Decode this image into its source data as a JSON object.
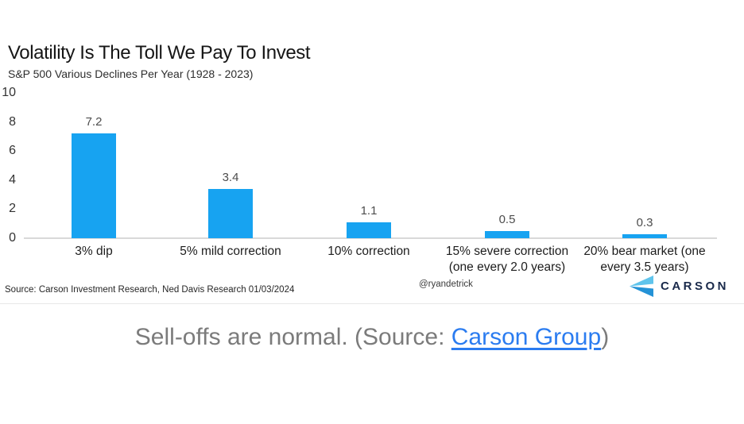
{
  "chart": {
    "title": "Volatility Is The Toll We Pay To Invest",
    "subtitle": "S&P 500 Various Declines Per Year (1928 - 2023)",
    "source_note": "Source: Carson Investment Research, Ned Davis Research 01/03/2024",
    "handle": "@ryandetrick",
    "logo_text": "CARSON"
  },
  "chart_data": {
    "type": "bar",
    "title": "Volatility Is The Toll We Pay To Invest",
    "subtitle": "S&P 500 Various Declines Per Year (1928 - 2023)",
    "categories": [
      "3% dip",
      "5% mild correction",
      "10% correction",
      "15% severe correction (one every 2.0 years)",
      "20% bear market (one every 3.5 years)"
    ],
    "category_lines": [
      [
        "3% dip"
      ],
      [
        "5% mild correction"
      ],
      [
        "10% correction"
      ],
      [
        "15% severe correction",
        "(one every 2.0 years)"
      ],
      [
        "20% bear market (one",
        "every 3.5  years)"
      ]
    ],
    "values": [
      7.2,
      3.4,
      1.1,
      0.5,
      0.3
    ],
    "value_labels": [
      "7.2",
      "3.4",
      "1.1",
      "0.5",
      "0.3"
    ],
    "ylim": [
      0,
      10
    ],
    "yticks": [
      0,
      2,
      4,
      6,
      8,
      10
    ],
    "grid": false,
    "legend": null,
    "bar_color": "#17a3f1"
  },
  "colors": {
    "bar_blue": "#17a3f1",
    "link_blue": "#2b7cf0",
    "logo_navy": "#19294a",
    "chevron_light": "#5fc4ec",
    "chevron_dark": "#2492d6",
    "caption_gray": "#7b7b7b"
  },
  "caption": {
    "prefix": "Sell-offs are normal. (Source: ",
    "link_text": "Carson Group",
    "suffix": ")"
  }
}
